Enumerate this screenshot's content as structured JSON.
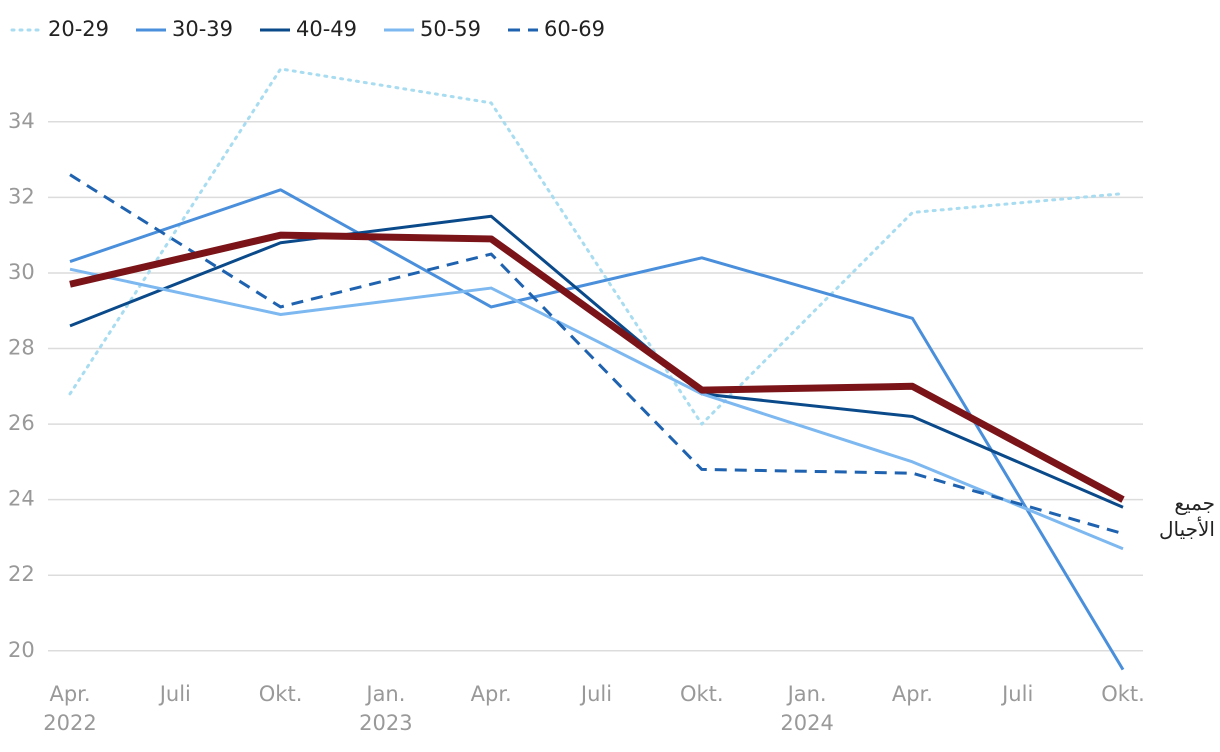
{
  "chart_data": {
    "type": "line",
    "xlim": [
      0,
      10
    ],
    "xticks": [
      {
        "value": 0,
        "label": "Apr."
      },
      {
        "value": 1,
        "label": "Juli"
      },
      {
        "value": 2,
        "label": "Okt."
      },
      {
        "value": 3,
        "label": "Jan."
      },
      {
        "value": 4,
        "label": "Apr."
      },
      {
        "value": 5,
        "label": "Juli"
      },
      {
        "value": 6,
        "label": "Okt."
      },
      {
        "value": 7,
        "label": "Jan."
      },
      {
        "value": 8,
        "label": "Apr."
      },
      {
        "value": 9,
        "label": "Juli"
      },
      {
        "value": 10,
        "label": "Okt."
      }
    ],
    "year_ticks": [
      {
        "value": 0,
        "label": "2022"
      },
      {
        "value": 3,
        "label": "2023"
      },
      {
        "value": 7,
        "label": "2024"
      }
    ],
    "x": [
      0,
      2,
      4,
      6,
      8,
      10
    ],
    "ylim": [
      19.2,
      35.8
    ],
    "yticks": [
      20,
      22,
      24,
      26,
      28,
      30,
      32,
      34
    ],
    "grid": true,
    "legend": "top-left",
    "series": [
      {
        "name": "20-29",
        "color": "#a8dcf0",
        "style": "dotted",
        "width": 3,
        "values": [
          26.8,
          35.4,
          34.5,
          26.0,
          31.6,
          32.1
        ]
      },
      {
        "name": "30-39",
        "color": "#4a8fdb",
        "style": "solid",
        "width": 3,
        "values": [
          30.3,
          32.2,
          29.1,
          30.4,
          28.8,
          19.5
        ]
      },
      {
        "name": "40-49",
        "color": "#0b4a8a",
        "style": "solid",
        "width": 3,
        "values": [
          28.6,
          30.8,
          31.5,
          26.8,
          26.2,
          23.8
        ]
      },
      {
        "name": "50-59",
        "color": "#7db8f0",
        "style": "solid",
        "width": 3,
        "values": [
          30.1,
          28.9,
          29.6,
          26.8,
          25.0,
          22.7
        ]
      },
      {
        "name": "60-69",
        "color": "#1f63b0",
        "style": "dashed",
        "width": 3,
        "values": [
          32.6,
          29.1,
          30.5,
          24.8,
          24.7,
          23.1
        ]
      },
      {
        "name": "جميع الأجيال",
        "color": "#7a1419",
        "style": "solid",
        "width": 7,
        "in_legend": false,
        "end_label": true,
        "values": [
          29.7,
          31.0,
          30.9,
          26.9,
          27.0,
          24.0
        ]
      }
    ]
  }
}
